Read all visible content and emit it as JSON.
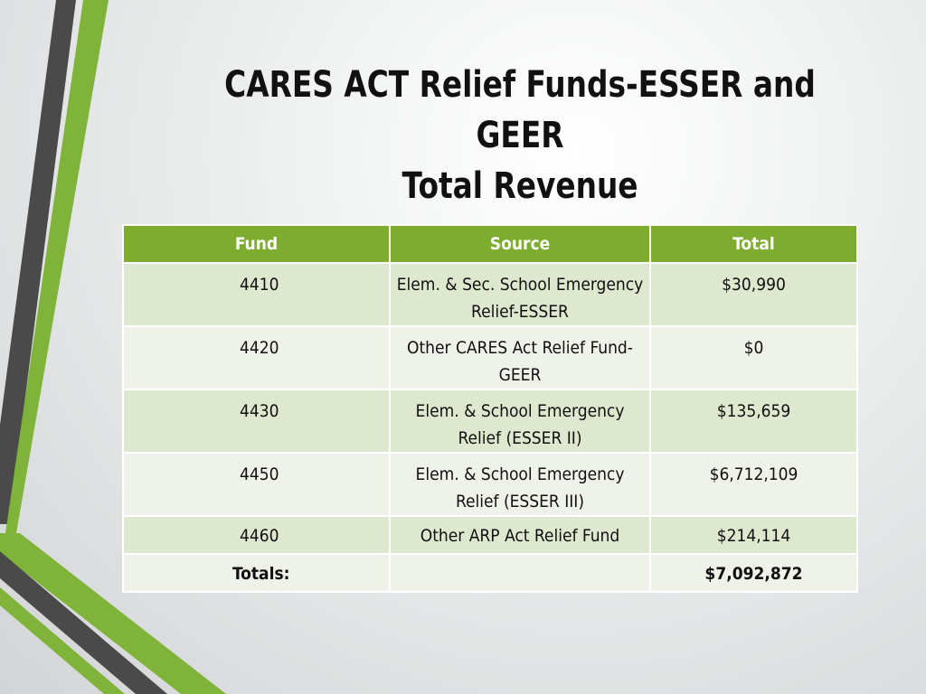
{
  "title": {
    "line1": "CARES ACT Relief Funds-ESSER and GEER",
    "line2": "Total Revenue"
  },
  "colors": {
    "accent_green": "#7dac2e",
    "stripe_gray": "#4a4a4a",
    "row_dark": "#dde8cf",
    "row_light": "#eef2e9"
  },
  "table": {
    "headers": [
      "Fund",
      "Source",
      "Total"
    ],
    "rows": [
      {
        "fund": "4410",
        "source": "Elem. & Sec. School Emergency Relief-ESSER",
        "total": "$30,990"
      },
      {
        "fund": "4420",
        "source": "Other CARES Act Relief Fund-GEER",
        "total": "$0"
      },
      {
        "fund": "4430",
        "source": "Elem. & School Emergency Relief (ESSER II)",
        "total": "$135,659"
      },
      {
        "fund": "4450",
        "source": "Elem. & School Emergency Relief (ESSER III)",
        "total": "$6,712,109"
      },
      {
        "fund": "4460",
        "source": "Other ARP Act Relief Fund",
        "total": "$214,114"
      }
    ],
    "totals": {
      "label": "Totals:",
      "source": "",
      "total": "$7,092,872"
    }
  }
}
